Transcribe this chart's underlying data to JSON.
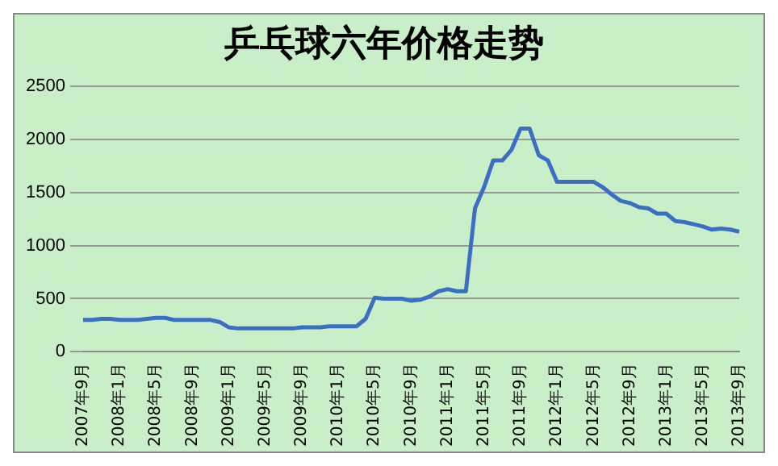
{
  "chart_data": {
    "type": "line",
    "title": "乒乓球六年价格走势",
    "categories": [
      "2007年9月",
      null,
      null,
      null,
      "2008年1月",
      null,
      null,
      null,
      "2008年5月",
      null,
      null,
      null,
      "2008年9月",
      null,
      null,
      null,
      "2009年1月",
      null,
      null,
      null,
      "2009年5月",
      null,
      null,
      null,
      "2009年9月",
      null,
      null,
      null,
      "2010年1月",
      null,
      null,
      null,
      "2010年5月",
      null,
      null,
      null,
      "2010年9月",
      null,
      null,
      null,
      "2011年1月",
      null,
      null,
      null,
      "2011年5月",
      null,
      null,
      null,
      "2011年9月",
      null,
      null,
      null,
      "2012年1月",
      null,
      null,
      null,
      "2012年5月",
      null,
      null,
      null,
      "2012年9月",
      null,
      null,
      null,
      "2013年1月",
      null,
      null,
      null,
      "2013年5月",
      null,
      null,
      null,
      "2013年9月"
    ],
    "series": [
      {
        "color": "#3b6fc4",
        "values": [
          300,
          300,
          310,
          310,
          300,
          300,
          300,
          310,
          320,
          320,
          300,
          300,
          300,
          300,
          300,
          280,
          230,
          220,
          220,
          220,
          220,
          220,
          220,
          220,
          230,
          230,
          230,
          240,
          240,
          240,
          240,
          310,
          510,
          500,
          500,
          500,
          480,
          490,
          520,
          570,
          590,
          570,
          570,
          1350,
          1550,
          1800,
          1800,
          1900,
          2100,
          2100,
          1850,
          1800,
          1600,
          1600,
          1600,
          1600,
          1600,
          1550,
          1480,
          1420,
          1400,
          1360,
          1350,
          1300,
          1300,
          1230,
          1220,
          1200,
          1180,
          1150,
          1160,
          1150,
          1130
        ]
      }
    ],
    "ylim": [
      0,
      2500
    ],
    "yticks": [
      0,
      500,
      1000,
      1500,
      2000,
      2500
    ],
    "grid": "y",
    "legend": false
  }
}
